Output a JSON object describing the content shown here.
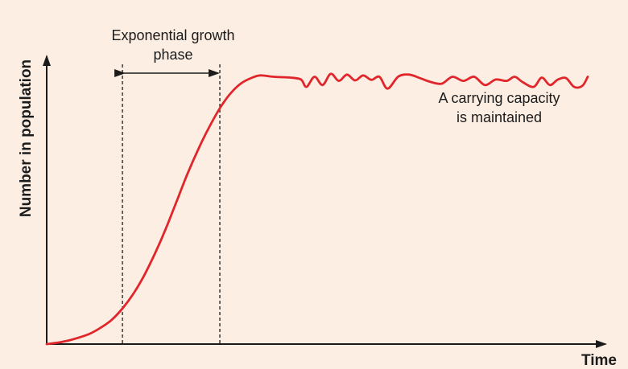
{
  "colors": {
    "background": "#fdeee3",
    "curve": "#e0262b",
    "ink": "#1b1b1b"
  },
  "chart_data": {
    "type": "line",
    "title": "",
    "xlabel": "Time",
    "ylabel": "Number in population",
    "xlim": [
      0,
      100
    ],
    "ylim": [
      0,
      100
    ],
    "grid": false,
    "legend": "none",
    "annotations": {
      "exponential_phase": {
        "line1": "Exponential growth",
        "line2": "phase",
        "x_start": 14,
        "x_end": 32
      },
      "carrying_capacity": {
        "line1": "A carrying capacity",
        "line2": "is maintained"
      }
    },
    "series": [
      {
        "values": [
          [
            0,
            0
          ],
          [
            2,
            0.5
          ],
          [
            4,
            1.3
          ],
          [
            6,
            2.4
          ],
          [
            8,
            3.8
          ],
          [
            10,
            6.0
          ],
          [
            12,
            8.8
          ],
          [
            14,
            13.0
          ],
          [
            16,
            18.3
          ],
          [
            18,
            25.0
          ],
          [
            20,
            33.0
          ],
          [
            22,
            42.0
          ],
          [
            24,
            52.0
          ],
          [
            26,
            62.0
          ],
          [
            28,
            71.0
          ],
          [
            30,
            79.0
          ],
          [
            32,
            86.0
          ],
          [
            34,
            91.5
          ],
          [
            36,
            95.2
          ],
          [
            38,
            97.2
          ],
          [
            39.5,
            98.0
          ],
          [
            42,
            97.5
          ],
          [
            45,
            97.2
          ],
          [
            47,
            96.5
          ],
          [
            48,
            93.8
          ],
          [
            49.5,
            97.5
          ],
          [
            51,
            94.5
          ],
          [
            52.5,
            98.6
          ],
          [
            54,
            96.0
          ],
          [
            55.5,
            98.3
          ],
          [
            57,
            96.2
          ],
          [
            58.5,
            98.0
          ],
          [
            60,
            96.4
          ],
          [
            61.5,
            97.5
          ],
          [
            63,
            93.2
          ],
          [
            65,
            97.6
          ],
          [
            67,
            98.3
          ],
          [
            69,
            97.0
          ],
          [
            71,
            95.6
          ],
          [
            73,
            95.0
          ],
          [
            75,
            97.5
          ],
          [
            77,
            96.0
          ],
          [
            79,
            97.5
          ],
          [
            81,
            94.5
          ],
          [
            83,
            96.5
          ],
          [
            85,
            96.0
          ],
          [
            86.5,
            97.5
          ],
          [
            88,
            95.5
          ],
          [
            90,
            93.8
          ],
          [
            91.5,
            97.2
          ],
          [
            93,
            94.5
          ],
          [
            94.5,
            96.5
          ],
          [
            96,
            97.0
          ],
          [
            97.5,
            93.8
          ],
          [
            99,
            94.2
          ],
          [
            100,
            97.5
          ]
        ]
      }
    ]
  }
}
